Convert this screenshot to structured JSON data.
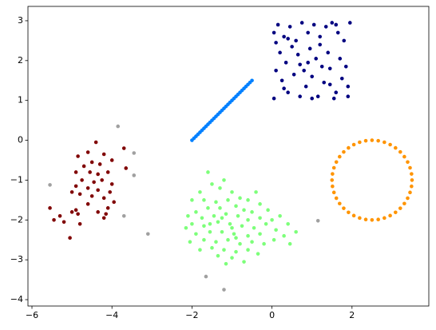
{
  "chart_data": {
    "type": "scatter",
    "xlim": [
      -6.1,
      3.92
    ],
    "ylim": [
      -4.16,
      3.36
    ],
    "xticks": [
      {
        "value": -6,
        "label": "−6"
      },
      {
        "value": -4,
        "label": "−4"
      },
      {
        "value": -2,
        "label": "−2"
      },
      0,
      2
    ],
    "yticks": [
      {
        "value": -4,
        "label": "−4"
      },
      {
        "value": -3,
        "label": "−3"
      },
      {
        "value": -2,
        "label": "−2"
      },
      {
        "value": -1,
        "label": "−1"
      },
      0,
      1,
      2,
      3
    ],
    "series": [
      {
        "color": "#000080",
        "x": [
          0.05,
          0.1,
          0.2,
          0.3,
          0.45,
          0.6,
          0.75,
          0.9,
          1.05,
          1.2,
          1.35,
          1.5,
          1.65,
          1.8,
          1.95,
          0.1,
          0.25,
          0.4,
          0.55,
          0.7,
          0.85,
          1.0,
          1.15,
          1.3,
          1.45,
          1.6,
          1.75,
          1.9,
          0.05,
          0.35,
          0.5,
          0.65,
          0.8,
          0.95,
          1.1,
          1.25,
          1.4,
          1.55,
          1.7,
          1.85,
          0.15,
          0.4,
          1.0,
          1.2,
          1.6,
          1.9,
          0.7,
          0.3,
          1.45,
          0.9
        ],
        "y": [
          2.7,
          2.45,
          2.2,
          2.6,
          2.85,
          2.5,
          2.95,
          2.7,
          2.9,
          2.6,
          2.85,
          2.95,
          2.7,
          2.5,
          2.95,
          1.75,
          1.5,
          1.2,
          1.65,
          1.9,
          1.35,
          1.6,
          1.1,
          1.45,
          1.8,
          1.2,
          1.55,
          1.1,
          1.05,
          1.95,
          2.35,
          2.15,
          1.75,
          2.3,
          2.05,
          1.85,
          2.2,
          1.05,
          2.05,
          1.85,
          2.9,
          2.55,
          1.05,
          2.4,
          2.9,
          1.35,
          1.1,
          1.3,
          1.4,
          1.95
        ]
      },
      {
        "color": "#0080ff",
        "x": [
          -2,
          -1.95,
          -1.9,
          -1.85,
          -1.8,
          -1.75,
          -1.7,
          -1.65,
          -1.6,
          -1.55,
          -1.5,
          -1.45,
          -1.4,
          -1.35,
          -1.3,
          -1.25,
          -1.2,
          -1.15,
          -1.1,
          -1.05,
          -1,
          -0.95,
          -0.9,
          -0.85,
          -0.8,
          -0.75,
          -0.7,
          -0.65,
          -0.6,
          -0.55,
          -0.5
        ],
        "y": [
          0,
          0.05,
          0.1,
          0.15,
          0.2,
          0.25,
          0.3,
          0.35,
          0.4,
          0.45,
          0.5,
          0.55,
          0.6,
          0.65,
          0.7,
          0.75,
          0.8,
          0.85,
          0.9,
          0.95,
          1,
          1.05,
          1.1,
          1.15,
          1.2,
          1.25,
          1.3,
          1.35,
          1.4,
          1.45,
          1.5
        ]
      },
      {
        "color": "#ff9400",
        "x": [
          3.5,
          3.488,
          3.451,
          3.391,
          3.309,
          3.207,
          3.088,
          2.954,
          2.809,
          2.656,
          2.5,
          2.344,
          2.191,
          2.046,
          1.912,
          1.793,
          1.691,
          1.609,
          1.549,
          1.512,
          1.5,
          1.512,
          1.549,
          1.609,
          1.691,
          1.793,
          1.912,
          2.046,
          2.191,
          2.344,
          2.5,
          2.656,
          2.809,
          2.954,
          3.088,
          3.207,
          3.309,
          3.391,
          3.451,
          3.488
        ],
        "y": [
          -1,
          -0.844,
          -0.691,
          -0.546,
          -0.412,
          -0.293,
          -0.191,
          -0.109,
          -0.049,
          -0.012,
          0,
          -0.012,
          -0.049,
          -0.109,
          -0.191,
          -0.293,
          -0.412,
          -0.546,
          -0.691,
          -0.844,
          -1,
          -1.156,
          -1.309,
          -1.454,
          -1.588,
          -1.707,
          -1.809,
          -1.891,
          -1.951,
          -1.988,
          -2,
          -1.988,
          -1.951,
          -1.891,
          -1.809,
          -1.707,
          -1.588,
          -1.454,
          -1.309,
          -1.156
        ]
      },
      {
        "color": "#7dff7a",
        "x": [
          -1.6,
          -1.5,
          -1.3,
          -1.0,
          -0.8,
          -1.8,
          -2.0,
          -1.7,
          -1.4,
          -1.1,
          -0.6,
          -0.3,
          -1.9,
          -1.6,
          -1.3,
          -0.9,
          -0.5,
          -0.1,
          -2.1,
          -1.75,
          -1.45,
          -1.15,
          -0.85,
          -0.6,
          -0.3,
          0.0,
          0.2,
          -2.0,
          -1.7,
          -1.35,
          -1.05,
          -0.75,
          -0.45,
          -0.15,
          0.1,
          -1.9,
          -1.55,
          -1.25,
          -0.95,
          -0.6,
          -0.3,
          0.3,
          -2.05,
          -1.7,
          -1.4,
          -1.1,
          -0.8,
          -0.5,
          -0.2,
          0.05,
          0.6,
          -1.8,
          -1.5,
          -1.2,
          -0.9,
          -0.6,
          -0.35,
          -1.35,
          -1.0,
          -0.7,
          -1.15,
          -2.15,
          0.4,
          -0.4,
          -1.2,
          -1.0,
          -1.25,
          -0.9,
          -0.7,
          -1.55,
          0.45
        ],
        "y": [
          -0.8,
          -1.1,
          -1.2,
          -1.3,
          -1.45,
          -1.3,
          -1.5,
          -1.5,
          -1.55,
          -1.5,
          -1.5,
          -1.6,
          -1.8,
          -1.7,
          -1.7,
          -1.65,
          -1.8,
          -1.75,
          -1.9,
          -1.95,
          -1.9,
          -1.85,
          -1.9,
          -2.0,
          -1.95,
          -2.0,
          -1.9,
          -2.1,
          -2.15,
          -2.05,
          -2.1,
          -2.15,
          -2.2,
          -2.1,
          -2.25,
          -2.35,
          -2.3,
          -2.3,
          -2.35,
          -2.4,
          -2.35,
          -2.4,
          -2.55,
          -2.5,
          -2.55,
          -2.5,
          -2.6,
          -2.55,
          -2.6,
          -2.5,
          -2.3,
          -2.75,
          -2.7,
          -2.75,
          -2.8,
          -2.75,
          -2.85,
          -2.9,
          -2.95,
          -3.05,
          -3.1,
          -2.2,
          -2.1,
          -1.3,
          -1.0,
          -2.2,
          -1.95,
          -2.45,
          -1.75,
          -2.1,
          -2.6
        ]
      },
      {
        "color": "#800000",
        "x": [
          -4.4,
          -4.6,
          -4.2,
          -4.85,
          -4.5,
          -4.3,
          -4.0,
          -3.7,
          -4.7,
          -4.9,
          -4.55,
          -4.35,
          -4.1,
          -3.65,
          -4.75,
          -4.45,
          -4.25,
          -4.0,
          -4.9,
          -4.6,
          -4.35,
          -4.05,
          -5.0,
          -4.8,
          -4.5,
          -4.2,
          -3.95,
          -4.6,
          -4.1,
          -4.9,
          -5.0,
          -4.35,
          -4.15,
          -5.3,
          -4.85,
          -5.45,
          -4.2,
          -5.2,
          -4.8,
          -5.05,
          -5.55
        ],
        "y": [
          -0.05,
          -0.3,
          -0.35,
          -0.4,
          -0.55,
          -0.6,
          -0.5,
          -0.2,
          -0.65,
          -0.8,
          -0.8,
          -0.85,
          -0.8,
          -0.7,
          -1.0,
          -1.05,
          -1.0,
          -1.1,
          -1.15,
          -1.2,
          -1.25,
          -1.3,
          -1.3,
          -1.35,
          -1.4,
          -1.45,
          -1.55,
          -1.6,
          -1.7,
          -1.75,
          -1.8,
          -1.8,
          -1.85,
          -1.9,
          -1.85,
          -2.0,
          -1.95,
          -2.05,
          -2.1,
          -2.45,
          -1.7
        ]
      },
      {
        "color": "#a0a0a0",
        "x": [
          -3.85,
          -3.45,
          -3.45,
          -5.55,
          -3.7,
          -3.1,
          -1.65,
          -1.2,
          1.15
        ],
        "y": [
          0.35,
          -0.32,
          -0.88,
          -1.12,
          -1.9,
          -2.35,
          -3.42,
          -3.75,
          -2.02
        ]
      }
    ]
  }
}
